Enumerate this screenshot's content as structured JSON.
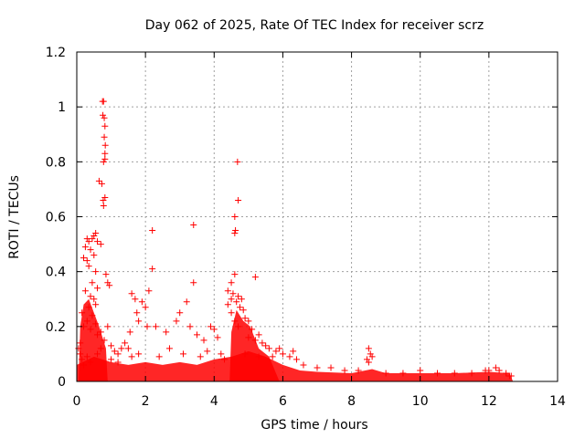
{
  "chart_data": {
    "type": "scatter",
    "title": "Day 062 of 2025, Rate Of TEC Index for receiver scrz",
    "xlabel": "GPS time / hours",
    "ylabel": "ROTI / TECUs",
    "xlim": [
      0,
      14
    ],
    "ylim": [
      0,
      1.2
    ],
    "x_ticks": [
      0,
      2,
      4,
      6,
      8,
      10,
      12,
      14
    ],
    "x_tick_labels": [
      "0",
      "2",
      "4",
      "6",
      "8",
      "10",
      "12",
      "14"
    ],
    "y_ticks": [
      0,
      0.2,
      0.4,
      0.6,
      0.8,
      1.0,
      1.2
    ],
    "y_tick_labels": [
      "0",
      "0.2",
      "0.4",
      "0.6",
      "0.8",
      "1",
      "1.2"
    ],
    "grid": true,
    "marker": "+",
    "series": [
      {
        "name": "ROTI",
        "color": "#ff0000",
        "points": [
          [
            0.75,
            1.02
          ],
          [
            0.78,
            1.02
          ],
          [
            0.76,
            0.97
          ],
          [
            0.8,
            0.96
          ],
          [
            0.82,
            0.93
          ],
          [
            0.8,
            0.89
          ],
          [
            0.83,
            0.86
          ],
          [
            0.82,
            0.83
          ],
          [
            0.78,
            0.8
          ],
          [
            0.82,
            0.81
          ],
          [
            0.65,
            0.73
          ],
          [
            0.73,
            0.72
          ],
          [
            0.82,
            0.67
          ],
          [
            0.77,
            0.66
          ],
          [
            0.78,
            0.64
          ],
          [
            0.55,
            0.54
          ],
          [
            0.5,
            0.53
          ],
          [
            0.45,
            0.52
          ],
          [
            0.6,
            0.51
          ],
          [
            0.7,
            0.5
          ],
          [
            0.3,
            0.52
          ],
          [
            0.35,
            0.51
          ],
          [
            0.25,
            0.49
          ],
          [
            0.4,
            0.48
          ],
          [
            0.2,
            0.45
          ],
          [
            0.5,
            0.46
          ],
          [
            0.3,
            0.44
          ],
          [
            0.35,
            0.42
          ],
          [
            0.55,
            0.4
          ],
          [
            0.85,
            0.39
          ],
          [
            0.9,
            0.36
          ],
          [
            0.95,
            0.35
          ],
          [
            0.45,
            0.36
          ],
          [
            0.6,
            0.34
          ],
          [
            0.25,
            0.33
          ],
          [
            0.4,
            0.31
          ],
          [
            0.5,
            0.3
          ],
          [
            0.55,
            0.28
          ],
          [
            0.35,
            0.27
          ],
          [
            0.15,
            0.25
          ],
          [
            0.45,
            0.24
          ],
          [
            0.3,
            0.22
          ],
          [
            0.55,
            0.21
          ],
          [
            0.2,
            0.2
          ],
          [
            0.4,
            0.19
          ],
          [
            0.6,
            0.17
          ],
          [
            0.7,
            0.18
          ],
          [
            0.9,
            0.2
          ],
          [
            0.8,
            0.15
          ],
          [
            0.1,
            0.14
          ],
          [
            2.2,
            0.55
          ],
          [
            2.2,
            0.41
          ],
          [
            3.4,
            0.57
          ],
          [
            3.4,
            0.36
          ],
          [
            1.6,
            0.32
          ],
          [
            1.7,
            0.3
          ],
          [
            2.1,
            0.33
          ],
          [
            1.9,
            0.29
          ],
          [
            2.0,
            0.27
          ],
          [
            1.75,
            0.25
          ],
          [
            1.8,
            0.22
          ],
          [
            2.05,
            0.2
          ],
          [
            1.55,
            0.18
          ],
          [
            2.3,
            0.2
          ],
          [
            2.6,
            0.18
          ],
          [
            2.9,
            0.22
          ],
          [
            3.2,
            0.29
          ],
          [
            3.0,
            0.25
          ],
          [
            3.3,
            0.2
          ],
          [
            3.5,
            0.17
          ],
          [
            3.7,
            0.15
          ],
          [
            3.9,
            0.2
          ],
          [
            4.0,
            0.19
          ],
          [
            4.1,
            0.16
          ],
          [
            4.4,
            0.33
          ],
          [
            4.5,
            0.3
          ],
          [
            4.4,
            0.28
          ],
          [
            4.5,
            0.25
          ],
          [
            4.6,
            0.22
          ],
          [
            4.7,
            0.2
          ],
          [
            4.68,
            0.8
          ],
          [
            4.7,
            0.66
          ],
          [
            4.6,
            0.6
          ],
          [
            4.62,
            0.55
          ],
          [
            4.6,
            0.54
          ],
          [
            4.6,
            0.39
          ],
          [
            4.5,
            0.36
          ],
          [
            4.55,
            0.32
          ],
          [
            4.7,
            0.31
          ],
          [
            4.8,
            0.3
          ],
          [
            4.65,
            0.29
          ],
          [
            4.75,
            0.27
          ],
          [
            4.85,
            0.26
          ],
          [
            4.9,
            0.23
          ],
          [
            5.0,
            0.22
          ],
          [
            5.2,
            0.38
          ],
          [
            5.1,
            0.19
          ],
          [
            5.3,
            0.17
          ],
          [
            5.0,
            0.16
          ],
          [
            5.2,
            0.15
          ],
          [
            5.4,
            0.14
          ],
          [
            5.5,
            0.13
          ],
          [
            5.6,
            0.12
          ],
          [
            5.8,
            0.11
          ],
          [
            6.0,
            0.1
          ],
          [
            6.2,
            0.09
          ],
          [
            6.4,
            0.08
          ],
          [
            5.7,
            0.09
          ],
          [
            5.9,
            0.12
          ],
          [
            6.3,
            0.11
          ],
          [
            8.5,
            0.12
          ],
          [
            8.55,
            0.1
          ],
          [
            8.6,
            0.09
          ],
          [
            8.45,
            0.08
          ],
          [
            8.5,
            0.07
          ],
          [
            12.2,
            0.05
          ],
          [
            12.3,
            0.04
          ],
          [
            11.9,
            0.04
          ],
          [
            12.5,
            0.03
          ],
          [
            12.65,
            0.02
          ],
          [
            0.05,
            0.12
          ],
          [
            0.1,
            0.1
          ],
          [
            0.15,
            0.08
          ],
          [
            0.2,
            0.06
          ],
          [
            0.3,
            0.09
          ],
          [
            0.4,
            0.07
          ],
          [
            0.6,
            0.1
          ],
          [
            0.7,
            0.12
          ],
          [
            1.0,
            0.13
          ],
          [
            1.1,
            0.11
          ],
          [
            1.2,
            0.1
          ],
          [
            1.3,
            0.12
          ],
          [
            1.4,
            0.14
          ],
          [
            1.5,
            0.12
          ],
          [
            1.0,
            0.08
          ],
          [
            1.2,
            0.07
          ],
          [
            1.6,
            0.09
          ],
          [
            1.8,
            0.1
          ],
          [
            2.4,
            0.09
          ],
          [
            2.7,
            0.12
          ],
          [
            3.1,
            0.1
          ],
          [
            3.6,
            0.09
          ],
          [
            3.8,
            0.11
          ],
          [
            4.2,
            0.1
          ],
          [
            4.3,
            0.08
          ],
          [
            4.9,
            0.1
          ],
          [
            5.3,
            0.09
          ],
          [
            6.6,
            0.06
          ],
          [
            7.0,
            0.05
          ],
          [
            7.4,
            0.05
          ],
          [
            7.8,
            0.04
          ],
          [
            8.2,
            0.04
          ],
          [
            9.0,
            0.03
          ],
          [
            9.5,
            0.03
          ],
          [
            10.0,
            0.04
          ],
          [
            10.5,
            0.03
          ],
          [
            11.0,
            0.03
          ],
          [
            11.5,
            0.03
          ],
          [
            12.0,
            0.04
          ],
          [
            12.6,
            0.02
          ]
        ]
      }
    ]
  }
}
